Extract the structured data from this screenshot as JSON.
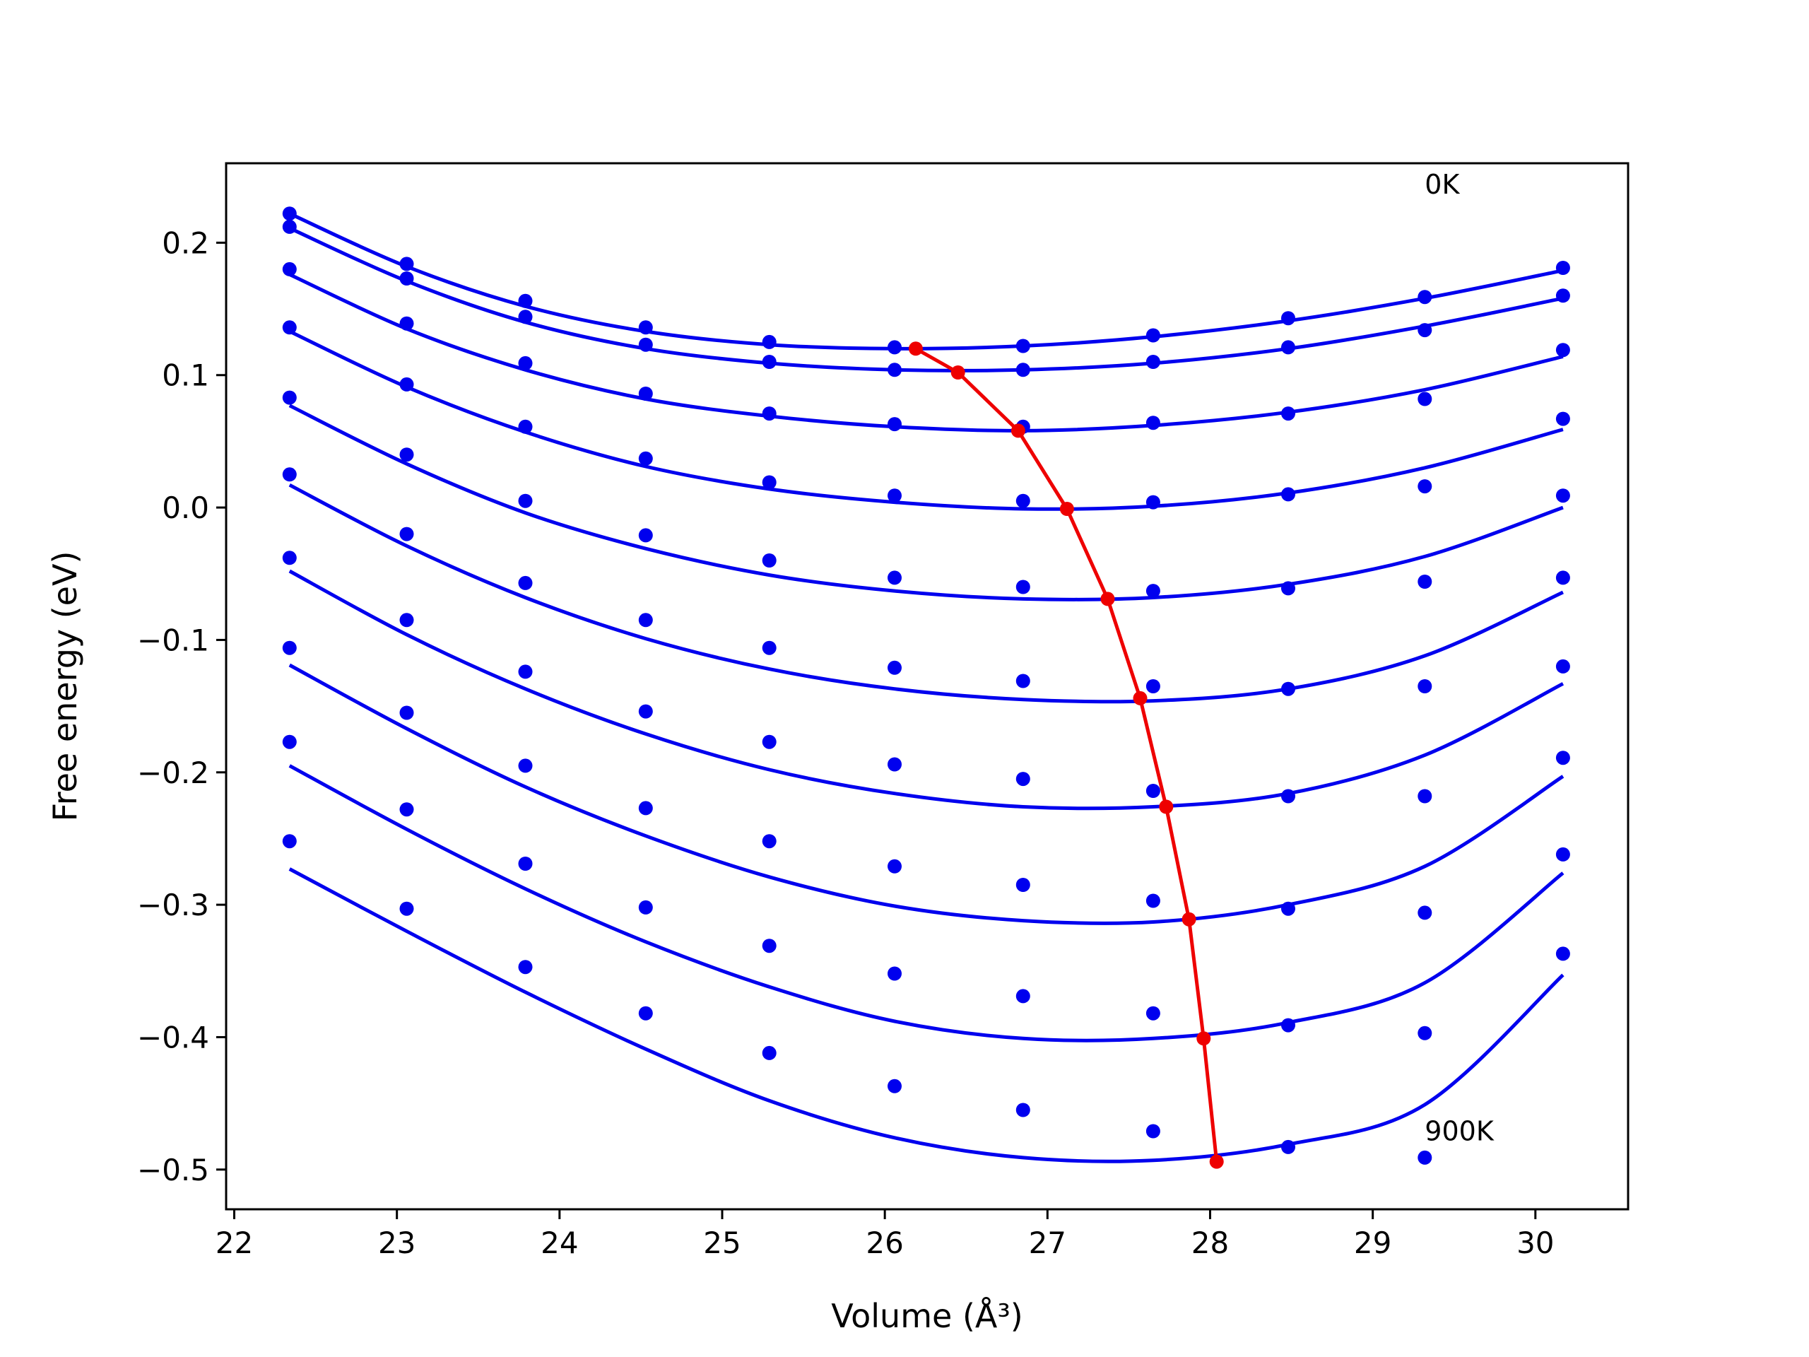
{
  "chart_data": {
    "type": "line",
    "xlabel": "Volume (Å³)",
    "ylabel": "Free energy (eV)",
    "xlim": [
      21.95,
      30.57
    ],
    "ylim": [
      -0.53,
      0.26
    ],
    "xticks": [
      22,
      23,
      24,
      25,
      26,
      27,
      28,
      29,
      30
    ],
    "xtick_labels": [
      "22",
      "23",
      "24",
      "25",
      "26",
      "27",
      "28",
      "29",
      "30"
    ],
    "yticks": [
      0.2,
      0.1,
      0.0,
      -0.1,
      -0.2,
      -0.3,
      -0.4,
      -0.5
    ],
    "ytick_labels": [
      "0.2",
      "0.1",
      "0.0",
      "−0.1",
      "−0.2",
      "−0.3",
      "−0.4",
      "−0.5"
    ],
    "grid": false,
    "legend": "none",
    "annotations": [
      {
        "text": "0K",
        "x": 29.32,
        "y": 0.237
      },
      {
        "text": "900K",
        "x": 29.32,
        "y": -0.478
      }
    ],
    "colors": {
      "data": "#0000ee",
      "minimum_path": "#ee0000"
    },
    "x_points": [
      22.34,
      23.06,
      23.79,
      24.53,
      25.29,
      26.06,
      26.85,
      27.65,
      28.48,
      29.32,
      30.17
    ],
    "series": [
      {
        "points": [
          0.222,
          0.184,
          0.156,
          0.136,
          0.125,
          0.121,
          0.122,
          0.13,
          0.143,
          0.159,
          0.181
        ],
        "fit": [
          0.222,
          0.182,
          0.152,
          0.133,
          0.123,
          0.12,
          0.122,
          0.129,
          0.141,
          0.158,
          0.179
        ]
      },
      {
        "points": [
          0.212,
          0.173,
          0.144,
          0.123,
          0.11,
          0.104,
          0.104,
          0.11,
          0.121,
          0.134,
          0.16
        ],
        "fit": [
          0.211,
          0.171,
          0.14,
          0.12,
          0.109,
          0.104,
          0.104,
          0.109,
          0.12,
          0.137,
          0.158
        ]
      },
      {
        "points": [
          0.18,
          0.139,
          0.109,
          0.086,
          0.071,
          0.063,
          0.061,
          0.064,
          0.071,
          0.082,
          0.119
        ],
        "fit": [
          0.176,
          0.135,
          0.104,
          0.082,
          0.069,
          0.061,
          0.058,
          0.062,
          0.072,
          0.089,
          0.114
        ]
      },
      {
        "points": [
          0.136,
          0.093,
          0.061,
          0.037,
          0.019,
          0.009,
          0.005,
          0.004,
          0.01,
          0.016,
          0.067
        ],
        "fit": [
          0.133,
          0.091,
          0.057,
          0.031,
          0.014,
          0.004,
          -0.001,
          0.001,
          0.011,
          0.03,
          0.059
        ]
      },
      {
        "points": [
          0.083,
          0.04,
          0.005,
          -0.021,
          -0.04,
          -0.053,
          -0.06,
          -0.063,
          -0.061,
          -0.056,
          0.009
        ],
        "fit": [
          0.077,
          0.033,
          -0.004,
          -0.031,
          -0.051,
          -0.063,
          -0.069,
          -0.068,
          -0.058,
          -0.037,
          0.0
        ]
      },
      {
        "points": [
          0.025,
          -0.02,
          -0.057,
          -0.085,
          -0.106,
          -0.121,
          -0.131,
          -0.135,
          -0.137,
          -0.135,
          -0.053
        ],
        "fit": [
          0.017,
          -0.029,
          -0.068,
          -0.099,
          -0.122,
          -0.137,
          -0.145,
          -0.146,
          -0.137,
          -0.112,
          -0.064
        ]
      },
      {
        "points": [
          -0.038,
          -0.085,
          -0.124,
          -0.154,
          -0.177,
          -0.194,
          -0.205,
          -0.214,
          -0.218,
          -0.218,
          -0.12
        ],
        "fit": [
          -0.048,
          -0.096,
          -0.137,
          -0.171,
          -0.198,
          -0.216,
          -0.226,
          -0.226,
          -0.216,
          -0.187,
          -0.133
        ]
      },
      {
        "points": [
          -0.106,
          -0.155,
          -0.195,
          -0.227,
          -0.252,
          -0.271,
          -0.285,
          -0.297,
          -0.303,
          -0.306,
          -0.189
        ],
        "fit": [
          -0.119,
          -0.167,
          -0.211,
          -0.248,
          -0.279,
          -0.301,
          -0.312,
          -0.313,
          -0.3,
          -0.271,
          -0.203
        ]
      },
      {
        "points": [
          -0.177,
          -0.228,
          -0.269,
          -0.302,
          -0.331,
          -0.352,
          -0.369,
          -0.382,
          -0.391,
          -0.397,
          -0.262
        ],
        "fit": [
          -0.195,
          -0.243,
          -0.288,
          -0.328,
          -0.362,
          -0.388,
          -0.401,
          -0.401,
          -0.389,
          -0.359,
          -0.276
        ]
      },
      {
        "points": [
          -0.252,
          -0.303,
          -0.347,
          -0.382,
          -0.412,
          -0.437,
          -0.455,
          -0.471,
          -0.483,
          -0.491,
          -0.337
        ],
        "fit": [
          -0.273,
          -0.32,
          -0.366,
          -0.409,
          -0.448,
          -0.476,
          -0.491,
          -0.493,
          -0.481,
          -0.451,
          -0.353
        ]
      }
    ],
    "minimum_path": {
      "x": [
        26.19,
        26.45,
        26.82,
        27.12,
        27.37,
        27.57,
        27.73,
        27.87,
        27.96,
        28.04
      ],
      "y": [
        0.12,
        0.102,
        0.058,
        -0.001,
        -0.069,
        -0.144,
        -0.226,
        -0.311,
        -0.401,
        -0.494
      ]
    }
  }
}
